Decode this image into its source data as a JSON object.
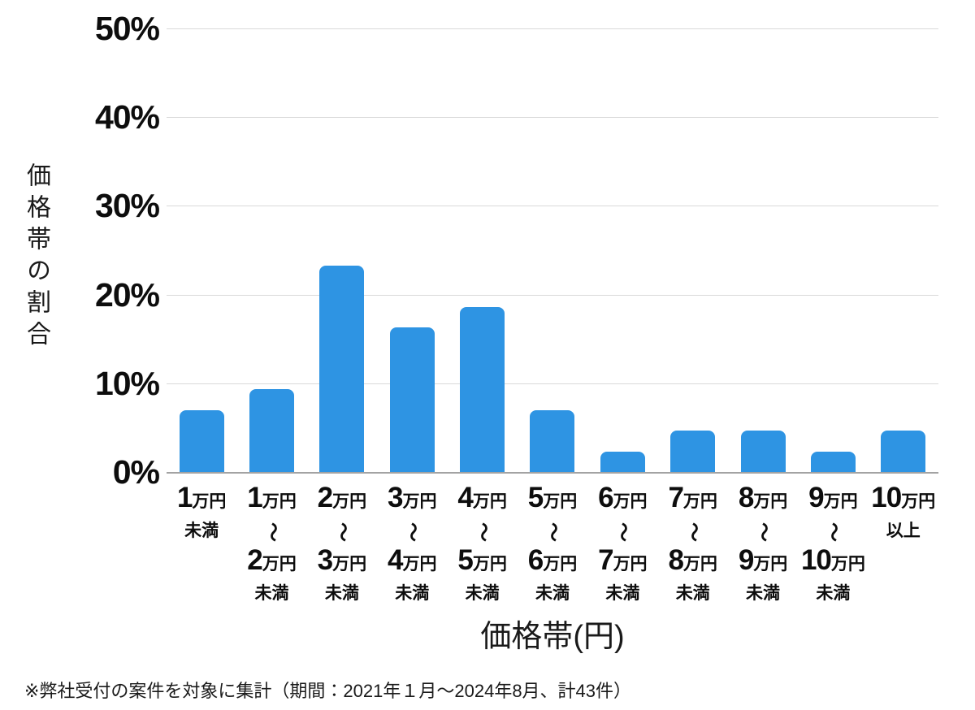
{
  "colors": {
    "bar": "#2e94e3",
    "gridline": "#d9d9d9",
    "axis_line": "#a3a3a3",
    "text": "#0d0d0d"
  },
  "chart_data": {
    "type": "bar",
    "title": "",
    "xlabel": "価格帯(円)",
    "ylabel": "価格帯の割合",
    "ylim": [
      0,
      50
    ],
    "grid": true,
    "legend": "none",
    "y_ticks": [
      "50%",
      "40%",
      "30%",
      "20%",
      "10%",
      "0%"
    ],
    "categories": [
      {
        "top_num": "1",
        "top_unit": "万円",
        "tilde": "",
        "bottom_num": "",
        "bottom_unit": "",
        "note": "未満"
      },
      {
        "top_num": "1",
        "top_unit": "万円",
        "tilde": "〜",
        "bottom_num": "2",
        "bottom_unit": "万円",
        "note": "未満"
      },
      {
        "top_num": "2",
        "top_unit": "万円",
        "tilde": "〜",
        "bottom_num": "3",
        "bottom_unit": "万円",
        "note": "未満"
      },
      {
        "top_num": "3",
        "top_unit": "万円",
        "tilde": "〜",
        "bottom_num": "4",
        "bottom_unit": "万円",
        "note": "未満"
      },
      {
        "top_num": "4",
        "top_unit": "万円",
        "tilde": "〜",
        "bottom_num": "5",
        "bottom_unit": "万円",
        "note": "未満"
      },
      {
        "top_num": "5",
        "top_unit": "万円",
        "tilde": "〜",
        "bottom_num": "6",
        "bottom_unit": "万円",
        "note": "未満"
      },
      {
        "top_num": "6",
        "top_unit": "万円",
        "tilde": "〜",
        "bottom_num": "7",
        "bottom_unit": "万円",
        "note": "未満"
      },
      {
        "top_num": "7",
        "top_unit": "万円",
        "tilde": "〜",
        "bottom_num": "8",
        "bottom_unit": "万円",
        "note": "未満"
      },
      {
        "top_num": "8",
        "top_unit": "万円",
        "tilde": "〜",
        "bottom_num": "9",
        "bottom_unit": "万円",
        "note": "未満"
      },
      {
        "top_num": "9",
        "top_unit": "万円",
        "tilde": "〜",
        "bottom_num": "10",
        "bottom_unit": "万円",
        "note": "未満"
      },
      {
        "top_num": "10",
        "top_unit": "万円",
        "tilde": "",
        "bottom_num": "",
        "bottom_unit": "",
        "note": "以上"
      }
    ],
    "values": [
      6.98,
      9.3,
      23.26,
      16.28,
      18.6,
      6.98,
      2.33,
      4.65,
      4.65,
      2.33,
      4.65
    ]
  },
  "footnote": "※弊社受付の案件を対象に集計（期間：2021年１月〜2024年8月、計43件）"
}
